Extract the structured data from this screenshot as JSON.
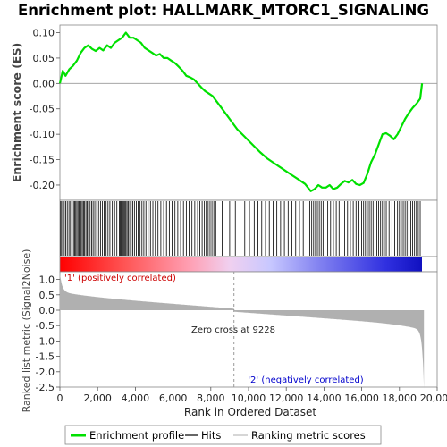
{
  "chart_data": {
    "type": "line",
    "title": "Enrichment plot: HALLMARK_MTORC1_SIGNALING",
    "ylabel": "Enrichment score (ES)",
    "ylabel_bottom": "Ranked list metric (Signal2Noise)",
    "xlabel": "Rank in Ordered Dataset",
    "xlim": [
      0,
      20000
    ],
    "x_max_rank": 19300,
    "x_ticks": [
      0,
      2000,
      4000,
      6000,
      8000,
      10000,
      12000,
      14000,
      16000,
      18000,
      20000
    ],
    "x_tick_labels": [
      "0",
      "2,000",
      "4,000",
      "6,000",
      "8,000",
      "10,000",
      "12,000",
      "14,000",
      "16,000",
      "18,000",
      "20,000"
    ],
    "es_ylim": [
      -0.23,
      0.115
    ],
    "es_ticks": [
      0.1,
      0.05,
      0.0,
      -0.05,
      -0.1,
      -0.15,
      -0.2
    ],
    "es_tick_labels": [
      "0.10",
      "0.05",
      "0.00",
      "-0.05",
      "-0.10",
      "-0.15",
      "-0.20"
    ],
    "metric_ylim": [
      -2.5,
      1.25
    ],
    "metric_ticks": [
      1.0,
      0.5,
      0.0,
      -0.5,
      -1.0,
      -1.5,
      -2.0,
      -2.5
    ],
    "metric_tick_labels": [
      "1.0",
      "0.5",
      "0.0",
      "-0.5",
      "-1.0",
      "-1.5",
      "-2.0",
      "-2.5"
    ],
    "series": [
      {
        "name": "Enrichment profile",
        "color": "#00e000",
        "x": [
          0,
          150,
          300,
          500,
          700,
          900,
          1100,
          1300,
          1500,
          1700,
          1900,
          2100,
          2300,
          2500,
          2700,
          2900,
          3100,
          3300,
          3500,
          3700,
          3900,
          4100,
          4300,
          4500,
          4700,
          4900,
          5100,
          5300,
          5500,
          5700,
          5900,
          6100,
          6300,
          6500,
          6700,
          6900,
          7100,
          7300,
          7500,
          7700,
          7900,
          8100,
          8300,
          8600,
          9000,
          9400,
          9800,
          10200,
          10600,
          11000,
          11400,
          11800,
          12200,
          12600,
          13000,
          13300,
          13500,
          13700,
          13900,
          14100,
          14300,
          14500,
          14700,
          14900,
          15100,
          15300,
          15500,
          15700,
          15900,
          16100,
          16300,
          16500,
          16700,
          16900,
          17100,
          17300,
          17500,
          17700,
          17900,
          18100,
          18300,
          18500,
          18700,
          18900,
          19100,
          19200
        ],
        "y": [
          0.0,
          0.025,
          0.015,
          0.028,
          0.035,
          0.045,
          0.06,
          0.07,
          0.075,
          0.068,
          0.064,
          0.07,
          0.065,
          0.075,
          0.07,
          0.08,
          0.085,
          0.09,
          0.1,
          0.09,
          0.09,
          0.085,
          0.08,
          0.07,
          0.065,
          0.06,
          0.055,
          0.058,
          0.05,
          0.05,
          0.045,
          0.04,
          0.033,
          0.025,
          0.015,
          0.012,
          0.008,
          0.0,
          -0.008,
          -0.015,
          -0.02,
          -0.025,
          -0.035,
          -0.05,
          -0.07,
          -0.09,
          -0.105,
          -0.12,
          -0.135,
          -0.148,
          -0.158,
          -0.168,
          -0.178,
          -0.188,
          -0.198,
          -0.212,
          -0.208,
          -0.2,
          -0.205,
          -0.205,
          -0.2,
          -0.208,
          -0.205,
          -0.198,
          -0.192,
          -0.195,
          -0.19,
          -0.198,
          -0.2,
          -0.196,
          -0.178,
          -0.155,
          -0.14,
          -0.12,
          -0.1,
          -0.098,
          -0.103,
          -0.11,
          -0.1,
          -0.085,
          -0.07,
          -0.058,
          -0.048,
          -0.04,
          -0.03,
          0.0
        ]
      },
      {
        "name": "Hits",
        "color": "#000000"
      },
      {
        "name": "Ranking metric scores",
        "color": "#bbbbbb"
      }
    ],
    "hit_ranks": [
      40,
      95,
      160,
      230,
      310,
      390,
      480,
      560,
      640,
      720,
      780,
      840,
      900,
      960,
      1020,
      1080,
      1130,
      1190,
      1250,
      1310,
      1380,
      1450,
      1520,
      1600,
      1680,
      1760,
      1850,
      1950,
      2050,
      2150,
      2250,
      2350,
      2450,
      2550,
      2650,
      2780,
      2900,
      3020,
      3150,
      3200,
      3250,
      3300,
      3350,
      3400,
      3450,
      3500,
      3560,
      3620,
      3700,
      3780,
      3860,
      3950,
      4050,
      4150,
      4250,
      4350,
      4450,
      4560,
      4680,
      4800,
      4930,
      5060,
      5200,
      5350,
      5500,
      5650,
      5800,
      5950,
      6100,
      6250,
      6400,
      6550,
      6700,
      6850,
      7000,
      7150,
      7300,
      7420,
      7540,
      7660,
      7760,
      7860,
      7960,
      8060,
      8160,
      8260,
      8600,
      9000,
      9300,
      9550,
      9800,
      10050,
      10300,
      10500,
      10700,
      10900,
      11100,
      11300,
      11500,
      11700,
      11900,
      12100,
      12300,
      12500,
      12700,
      12900,
      13250,
      13350,
      13450,
      13550,
      13650,
      13750,
      13850,
      13950,
      14050,
      14200,
      14350,
      14500,
      14650,
      14800,
      14950,
      15100,
      15250,
      15400,
      15550,
      15700,
      15850,
      16000,
      16100,
      16200,
      16300,
      16400,
      16500,
      16600,
      16700,
      16800,
      16900,
      17000,
      17100,
      17200,
      17300,
      17450,
      17600,
      17750,
      17900,
      18000,
      18100,
      18200,
      18300,
      18400,
      18500,
      18600,
      18700,
      18800,
      18900,
      19000,
      19100
    ],
    "annotations": {
      "pos_label": "'1' (positively correlated)",
      "neg_label": "'2' (negatively correlated)",
      "zero_cross": "Zero cross at 9228",
      "zero_cross_rank": 9228
    },
    "colors": {
      "profile": "#00e000",
      "pos_label": "#cc0000",
      "neg_label": "#0000cc",
      "metric_fill": "#b0b0b0",
      "band_positive": "#ff0000",
      "band_negative": "#0000cc"
    },
    "legend_position": "bottom",
    "grid": false
  }
}
